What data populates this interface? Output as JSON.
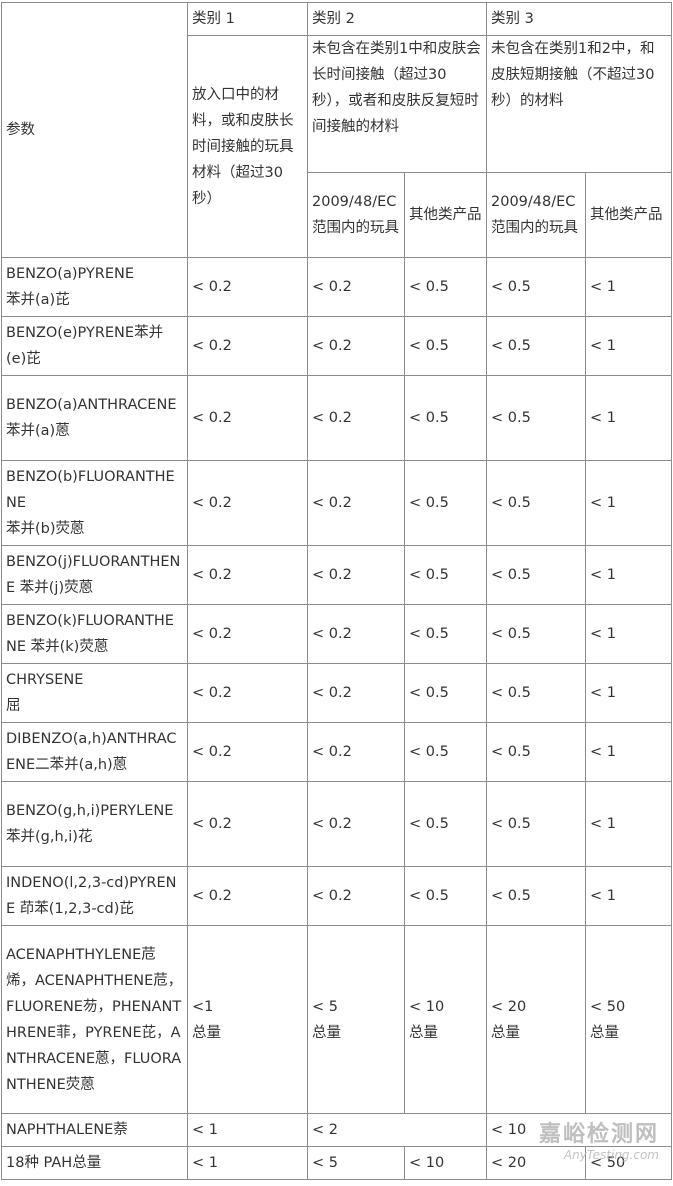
{
  "headers": {
    "param": "参数",
    "cat1": "类别 1",
    "cat2": "类别 2",
    "cat3": "类别 3",
    "cat1_desc": "放入口中的材料，或和皮肤长时间接触的玩具材料（超过30秒）",
    "cat2_desc": "未包含在类别1中和皮肤会长时间接触（超过30秒），或者和皮肤反复短时间接触的材料",
    "cat3_desc": "未包含在类别1和2中，和皮肤短期接触（不超过30秒）的材料",
    "sub_toys": "2009/48/EC范围内的玩具",
    "sub_other": "其他类产品"
  },
  "rows": [
    {
      "name": [
        "BENZO(a)PYRENE",
        "苯并(a)芘"
      ],
      "v": [
        "< 0.2",
        "< 0.2",
        "< 0.5",
        "< 0.5",
        "< 1"
      ]
    },
    {
      "name": [
        "BENZO(e)PYRENE苯并(e)芘"
      ],
      "v": [
        "< 0.2",
        "< 0.2",
        "< 0.5",
        "< 0.5",
        "< 1"
      ]
    },
    {
      "name": [
        "BENZO(a)ANTHRACENE",
        "苯并(a)蒽"
      ],
      "v": [
        "< 0.2",
        "< 0.2",
        "< 0.5",
        "< 0.5",
        "< 1"
      ]
    },
    {
      "name": [
        "BENZO(b)FLUORANTHENE",
        "苯并(b)荧蒽"
      ],
      "v": [
        "< 0.2",
        "< 0.2",
        "< 0.5",
        "< 0.5",
        "< 1"
      ]
    },
    {
      "name": [
        "BENZO(j)FLUORANTHENE 苯并(j)荧蒽"
      ],
      "v": [
        "< 0.2",
        "< 0.2",
        "< 0.5",
        "< 0.5",
        "< 1"
      ]
    },
    {
      "name": [
        "BENZO(k)FLUORANTHENE 苯并(k)荧蒽"
      ],
      "v": [
        "< 0.2",
        "< 0.2",
        "< 0.5",
        "< 0.5",
        "< 1"
      ]
    },
    {
      "name": [
        "CHRYSENE",
        "屈"
      ],
      "v": [
        "< 0.2",
        "< 0.2",
        "< 0.5",
        "< 0.5",
        "< 1"
      ]
    },
    {
      "name": [
        "DIBENZO(a,h)ANTHRACENE二苯并(a,h)蒽"
      ],
      "v": [
        "< 0.2",
        "< 0.2",
        "< 0.5",
        "< 0.5",
        "< 1"
      ]
    },
    {
      "name": [
        "BENZO(g,h,i)PERYLENE",
        "苯并(g,h,i)花"
      ],
      "v": [
        "< 0.2",
        "< 0.2",
        "< 0.5",
        "< 0.5",
        "< 1"
      ]
    },
    {
      "name": [
        "INDENO(l,2,3-cd)PYRENE 茚苯(1,2,3-cd)芘"
      ],
      "v": [
        "< 0.2",
        "< 0.2",
        "< 0.5",
        "< 0.5",
        "< 1"
      ]
    }
  ],
  "group_row": {
    "name": "ACENAPHTHYLENE苊烯，ACENAPHTHENE苊，FLUORENE芴，PHENANTHRENE菲，PYRENE芘，ANTHRACENE蒽，FLUORANTHENE荧蒽",
    "v": [
      "<1",
      "< 5",
      "< 10",
      "< 20",
      "< 50"
    ],
    "unit": "总量"
  },
  "naphthalene_row": {
    "name": "NAPHTHALENE萘",
    "v": [
      "< 1",
      "< 2",
      "< 10"
    ]
  },
  "total_row": {
    "name": "18种 PAH总量",
    "v": [
      "< 1",
      "< 5",
      "< 10",
      "< 20",
      "< 50"
    ]
  },
  "watermark": {
    "cn": "嘉峪检测网",
    "en": "AnyTesting.com"
  }
}
